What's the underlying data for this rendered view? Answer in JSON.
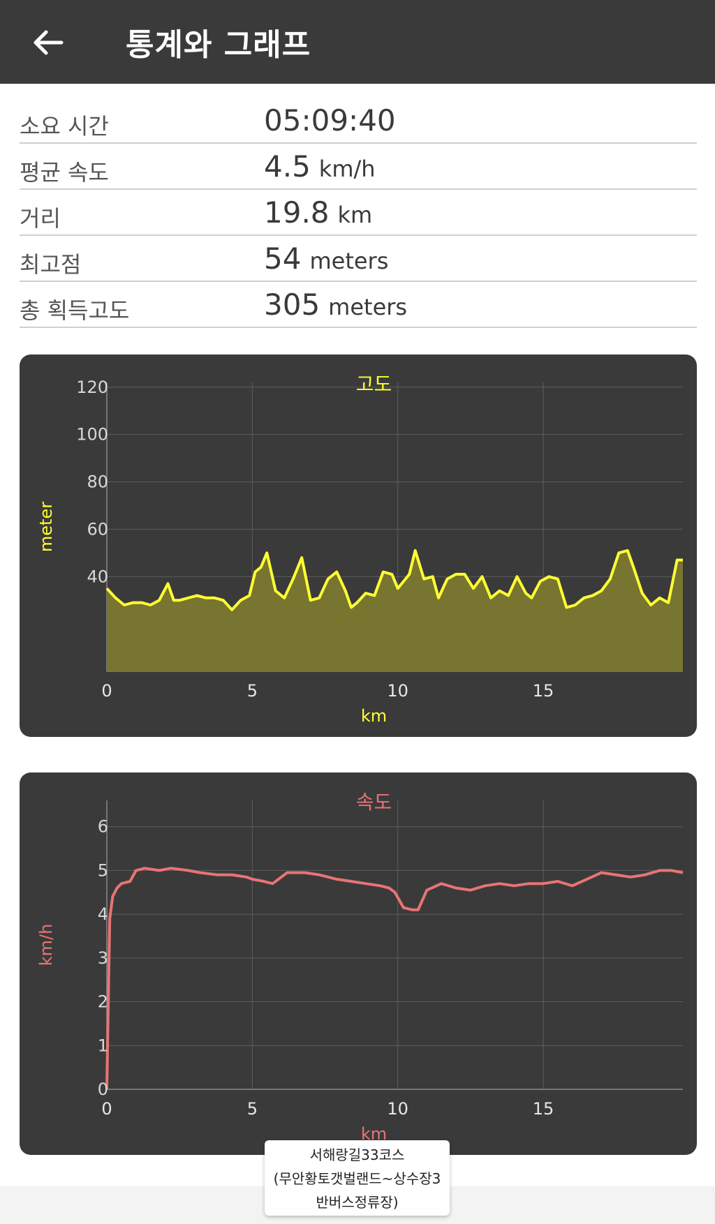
{
  "header": {
    "title": "통계와 그래프",
    "back_icon": "arrow-left-icon"
  },
  "stats": [
    {
      "label": "소요 시간",
      "value": "05:09:40",
      "unit": ""
    },
    {
      "label": "평균 속도",
      "value": "4.5",
      "unit": "km/h"
    },
    {
      "label": "거리",
      "value": "19.8",
      "unit": "km"
    },
    {
      "label": "최고점",
      "value": "54",
      "unit": "meters"
    },
    {
      "label": "총 획득고도",
      "value": "305",
      "unit": "meters"
    }
  ],
  "chart_data": [
    {
      "type": "area",
      "title": "고도",
      "xlabel": "km",
      "ylabel": "meter",
      "xlim": [
        0,
        19.8
      ],
      "ylim": [
        0,
        122
      ],
      "xticks": [
        "0",
        "5",
        "10",
        "15"
      ],
      "yticks": [
        "40",
        "60",
        "80",
        "100",
        "120"
      ],
      "grid": true,
      "color": "#ffff33",
      "x": [
        0,
        0.3,
        0.6,
        0.9,
        1.2,
        1.5,
        1.8,
        2.1,
        2.3,
        2.5,
        2.8,
        3.1,
        3.4,
        3.7,
        4.0,
        4.3,
        4.6,
        4.9,
        5.1,
        5.3,
        5.5,
        5.8,
        6.1,
        6.4,
        6.7,
        7.0,
        7.3,
        7.6,
        7.9,
        8.2,
        8.4,
        8.6,
        8.9,
        9.2,
        9.5,
        9.8,
        10.0,
        10.2,
        10.4,
        10.6,
        10.9,
        11.2,
        11.4,
        11.7,
        12.0,
        12.3,
        12.6,
        12.9,
        13.2,
        13.5,
        13.8,
        14.1,
        14.4,
        14.6,
        14.9,
        15.2,
        15.5,
        15.8,
        16.1,
        16.4,
        16.7,
        17.0,
        17.3,
        17.6,
        17.9,
        18.1,
        18.4,
        18.7,
        19.0,
        19.3,
        19.6,
        19.8
      ],
      "y": [
        35,
        31,
        28,
        29,
        29,
        28,
        30,
        37,
        30,
        30,
        31,
        32,
        31,
        31,
        30,
        26,
        30,
        32,
        42,
        44,
        50,
        34,
        31,
        39,
        48,
        30,
        31,
        39,
        42,
        34,
        27,
        29,
        33,
        32,
        42,
        41,
        35,
        38,
        41,
        51,
        39,
        40,
        31,
        39,
        41,
        41,
        35,
        40,
        31,
        34,
        32,
        40,
        33,
        31,
        38,
        40,
        39,
        27,
        28,
        31,
        32,
        34,
        39,
        50,
        51,
        44,
        33,
        28,
        31,
        29,
        47,
        47
      ]
    },
    {
      "type": "line",
      "title": "속도",
      "xlabel": "km",
      "ylabel": "km/h",
      "xlim": [
        0,
        19.8
      ],
      "ylim": [
        0,
        6.6
      ],
      "xticks": [
        "0",
        "5",
        "10",
        "15"
      ],
      "yticks": [
        "0",
        "1",
        "2",
        "3",
        "4",
        "5",
        "6"
      ],
      "grid": true,
      "color": "#e87474",
      "x": [
        0,
        0.05,
        0.1,
        0.2,
        0.35,
        0.5,
        0.8,
        1.0,
        1.3,
        1.8,
        2.2,
        2.8,
        3.2,
        3.8,
        4.3,
        4.8,
        5.0,
        5.4,
        5.7,
        6.2,
        6.8,
        7.3,
        7.9,
        8.4,
        8.9,
        9.4,
        9.7,
        9.9,
        10.2,
        10.5,
        10.7,
        11.0,
        11.5,
        12.0,
        12.5,
        13.0,
        13.5,
        14.0,
        14.5,
        15.0,
        15.5,
        16.0,
        16.5,
        17.0,
        17.5,
        18.0,
        18.5,
        19.0,
        19.4,
        19.8
      ],
      "y": [
        0,
        2.0,
        3.9,
        4.4,
        4.6,
        4.7,
        4.75,
        5.0,
        5.05,
        5.0,
        5.05,
        5.0,
        4.95,
        4.9,
        4.9,
        4.85,
        4.8,
        4.75,
        4.7,
        4.95,
        4.95,
        4.9,
        4.8,
        4.75,
        4.7,
        4.65,
        4.6,
        4.5,
        4.15,
        4.1,
        4.1,
        4.55,
        4.7,
        4.6,
        4.55,
        4.65,
        4.7,
        4.65,
        4.7,
        4.7,
        4.75,
        4.65,
        4.8,
        4.95,
        4.9,
        4.85,
        4.9,
        5.0,
        5.0,
        4.95
      ]
    }
  ],
  "route_label": "서해랑길33코스\n(무안황토갯벌랜드~상수장3\n반버스정류장)"
}
